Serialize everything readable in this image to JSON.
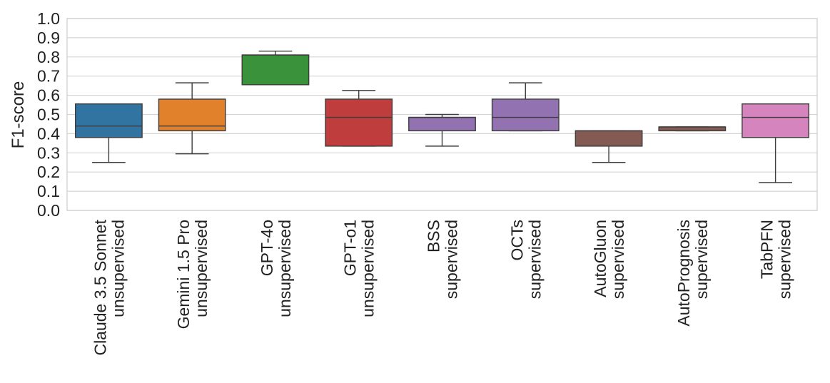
{
  "chart_data": {
    "type": "box",
    "title": "",
    "xlabel": "",
    "ylabel": "F1-score",
    "ylim": [
      0.0,
      1.0
    ],
    "yticks": [
      "0.0",
      "0.1",
      "0.2",
      "0.3",
      "0.4",
      "0.5",
      "0.6",
      "0.7",
      "0.8",
      "0.9",
      "1.0"
    ],
    "grid": true,
    "categories": [
      {
        "line1": "Claude 3.5 Sonnet",
        "line2": "unsupervised",
        "color": "#3274a1",
        "whisker_low": 0.25,
        "q1": 0.38,
        "median": 0.44,
        "q3": 0.555,
        "whisker_high": 0.555
      },
      {
        "line1": "Gemini 1.5 Pro",
        "line2": "unsupervised",
        "color": "#e1812c",
        "whisker_low": 0.295,
        "q1": 0.415,
        "median": 0.44,
        "q3": 0.58,
        "whisker_high": 0.665
      },
      {
        "line1": "GPT-4o",
        "line2": "unsupervised",
        "color": "#3a923a",
        "whisker_low": 0.655,
        "q1": 0.655,
        "median": 0.81,
        "q3": 0.81,
        "whisker_high": 0.83
      },
      {
        "line1": "GPT-o1",
        "line2": "unsupervised",
        "color": "#c03d3e",
        "whisker_low": 0.335,
        "q1": 0.335,
        "median": 0.485,
        "q3": 0.58,
        "whisker_high": 0.625
      },
      {
        "line1": "BSS",
        "line2": "supervised",
        "color": "#9372b2",
        "whisker_low": 0.335,
        "q1": 0.415,
        "median": 0.485,
        "q3": 0.485,
        "whisker_high": 0.5
      },
      {
        "line1": "OCTs",
        "line2": "supervised",
        "color": "#9372b2",
        "whisker_low": 0.415,
        "q1": 0.415,
        "median": 0.485,
        "q3": 0.58,
        "whisker_high": 0.665
      },
      {
        "line1": "AutoGluon",
        "line2": "supervised",
        "color": "#845b53",
        "whisker_low": 0.25,
        "q1": 0.335,
        "median": 0.415,
        "q3": 0.415,
        "whisker_high": 0.415
      },
      {
        "line1": "AutoPrognosis",
        "line2": "supervised",
        "color": "#845b53",
        "whisker_low": 0.415,
        "q1": 0.415,
        "median": 0.435,
        "q3": 0.435,
        "whisker_high": 0.435
      },
      {
        "line1": "TabPFN",
        "line2": "supervised",
        "color": "#d684bd",
        "whisker_low": 0.145,
        "q1": 0.38,
        "median": 0.485,
        "q3": 0.555,
        "whisker_high": 0.555
      }
    ]
  }
}
